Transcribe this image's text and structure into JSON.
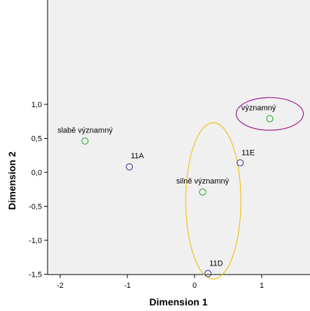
{
  "chart_data": {
    "type": "scatter",
    "title": "",
    "xlabel": "Dimension 1",
    "ylabel": "Dimension 2",
    "xlim": [
      -2.45,
      1.7
    ],
    "ylim": [
      -1.5,
      1.5
    ],
    "x_ticks": [
      {
        "value": -2,
        "label": "-2"
      },
      {
        "value": -1,
        "label": "-1"
      },
      {
        "value": 0,
        "label": "0"
      },
      {
        "value": 1,
        "label": "1"
      }
    ],
    "y_ticks": [
      {
        "value": 1.0,
        "label": "1,0"
      },
      {
        "value": 0.5,
        "label": "0,5"
      },
      {
        "value": 0.0,
        "label": "0,0"
      },
      {
        "value": -0.5,
        "label": "-0,5"
      },
      {
        "value": -1.0,
        "label": "-1,0"
      },
      {
        "value": -1.5,
        "label": "-1,5"
      }
    ],
    "grid": false,
    "colors": {
      "background": "#f0f0f0",
      "green_point": "#3cb043",
      "blue_point": "#4a4aa8",
      "purple_ellipse": "#a0208c",
      "orange_ellipse": "#f0c020"
    },
    "points": [
      {
        "label": "slabě významný",
        "x": -1.63,
        "y": 0.46,
        "color": "green"
      },
      {
        "label": "11A",
        "x": -0.97,
        "y": 0.08,
        "color": "blue"
      },
      {
        "label": "významný",
        "x": 1.12,
        "y": 0.79,
        "color": "green"
      },
      {
        "label": "11E",
        "x": 0.68,
        "y": 0.14,
        "color": "blue"
      },
      {
        "label": "silně významný",
        "x": 0.12,
        "y": -0.29,
        "color": "green"
      },
      {
        "label": "11D",
        "x": 0.2,
        "y": -1.49,
        "color": "blue"
      }
    ],
    "annotations": [
      {
        "type": "ellipse",
        "color": "purple",
        "cx": 1.12,
        "cy": 0.86,
        "rx": 0.5,
        "ry": 0.24
      },
      {
        "type": "ellipse",
        "color": "orange",
        "cx": 0.28,
        "cy": -0.42,
        "rx": 0.41,
        "ry": 1.15
      }
    ]
  }
}
